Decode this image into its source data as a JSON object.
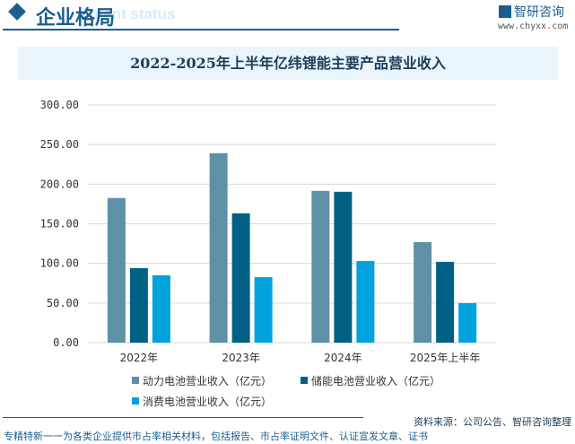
{
  "header": {
    "section_title": "企业格局",
    "ghost_text": "ment status",
    "logo_text": "智研咨询",
    "url": "www.chyxx.com"
  },
  "chart_data": {
    "type": "bar",
    "title": "2022-2025年上半年亿纬锂能主要产品营业收入",
    "categories": [
      "2022年",
      "2023年",
      "2024年",
      "2025年上半年"
    ],
    "series": [
      {
        "name": "动力电池营业收入（亿元）",
        "color": "#5e91a8",
        "values": [
          182.5,
          239.1,
          191.5,
          126.9
        ]
      },
      {
        "name": "储能电池营业收入（亿元）",
        "color": "#006184",
        "values": [
          94.1,
          163.2,
          190.4,
          102.0
        ]
      },
      {
        "name": "消费电池营业收入（亿元）",
        "color": "#00a3dc",
        "values": [
          85.0,
          82.7,
          103.1,
          49.9
        ]
      }
    ],
    "ylim": [
      0,
      300
    ],
    "yticks": [
      "0.00",
      "50.00",
      "100.00",
      "150.00",
      "200.00",
      "250.00",
      "300.00"
    ],
    "grid": true,
    "legend_placement": "bottom"
  },
  "footer": {
    "source": "资料来源：公司公告、智研咨询整理",
    "note": "专精特新一一为各类企业提供市占率相关材料，包括报告、市占率证明文件、认证宣发文章、证书"
  }
}
